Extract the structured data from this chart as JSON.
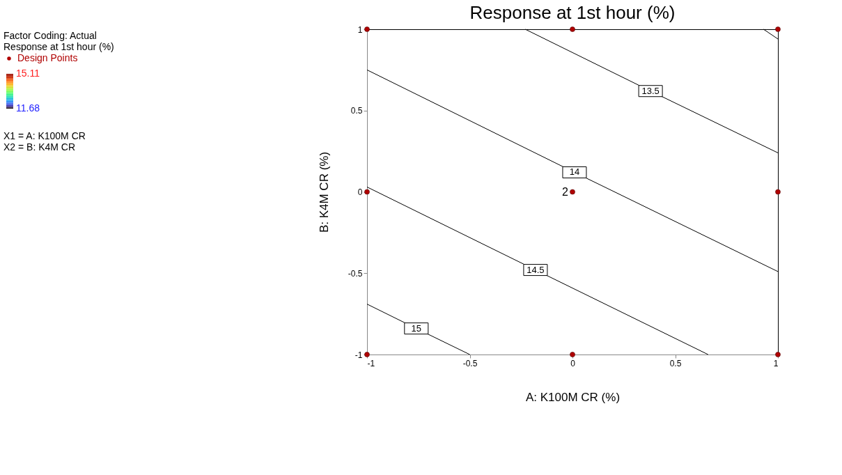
{
  "chart_data": {
    "type": "line",
    "title": "Response at 1st hour (%)",
    "xlabel": "A: K100M CR (%)",
    "ylabel": "B: K4M CR (%)",
    "xlim": [
      -1,
      1
    ],
    "ylim": [
      -1,
      1
    ],
    "xticks": [
      -1,
      -0.5,
      0,
      0.5,
      1
    ],
    "yticks": [
      -1,
      -0.5,
      0,
      0.5,
      1
    ],
    "clim": [
      11.68,
      15.11
    ],
    "cticks": [
      15.11,
      11.68
    ],
    "grid": false,
    "legend": "left",
    "line_style": "solid",
    "series": [
      {
        "name": "13.5",
        "color": "#000000",
        "x": [
          -0.23,
          0.38,
          1
        ],
        "values": [
          1,
          0.62,
          0.24
        ]
      },
      {
        "name": "14",
        "color": "#000000",
        "x": [
          -1,
          0.01,
          1
        ],
        "values": [
          0.75,
          0.12,
          -0.49
        ]
      },
      {
        "name": "14.5",
        "color": "#000000",
        "x": [
          -1,
          -0.18,
          0.66
        ],
        "values": [
          0.03,
          -0.48,
          -1
        ]
      },
      {
        "name": "15",
        "color": "#000000",
        "x": [
          -1,
          -0.76,
          -0.5
        ],
        "values": [
          -0.69,
          -0.84,
          -1
        ]
      },
      {
        "color": "#000000",
        "x": [
          0.93,
          1
        ],
        "values": [
          1,
          0.94
        ]
      },
      {
        "name": "Design Points",
        "type": "scatter",
        "marker": "circle",
        "color": "#b00000",
        "x": [
          -1,
          0,
          1,
          -1,
          0,
          1,
          -1,
          0,
          1
        ],
        "values": [
          1,
          1,
          1,
          0,
          0,
          0,
          -1,
          -1,
          -1
        ]
      }
    ],
    "annotations": [
      "Factor Coding: Actual",
      "Response at 1st hour (%)",
      "X1 = A: K100M CR",
      "X2 = B: K4M CR",
      {
        "text": "2",
        "x": 0,
        "y": 0
      }
    ]
  }
}
